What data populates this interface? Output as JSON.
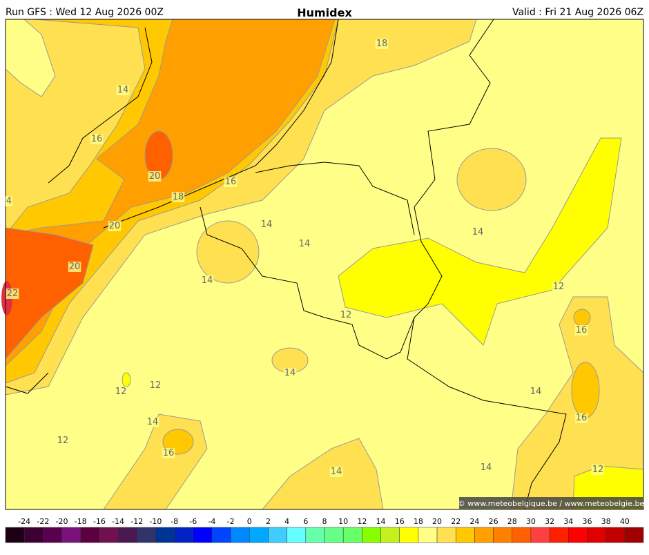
{
  "header": {
    "run": "Run GFS : Wed 12 Aug 2026 00Z",
    "title": "Humidex",
    "valid": "Valid : Fri 21 Aug 2026 06Z"
  },
  "map": {
    "contour_labels": [
      "18",
      "14",
      "16",
      "20",
      "16",
      "18",
      "4",
      "14",
      "20",
      "14",
      "14",
      "20",
      "14",
      "12",
      "22",
      "12",
      "16",
      "14",
      "12",
      "12",
      "14",
      "14",
      "16",
      "12",
      "16",
      "14",
      "14",
      "12"
    ],
    "copyright": "© www.meteobelgique.be / www.meteobelgie.be"
  },
  "colorbar": {
    "labels": [
      -24,
      -22,
      -20,
      -18,
      -16,
      -14,
      -12,
      -10,
      -8,
      -6,
      -4,
      -2,
      0,
      2,
      4,
      6,
      8,
      10,
      12,
      14,
      16,
      18,
      20,
      22,
      24,
      26,
      28,
      30,
      32,
      34,
      36,
      38,
      40
    ],
    "colors": [
      "#1e0014",
      "#3c0032",
      "#5a0050",
      "#7a107a",
      "#5c0040",
      "#701050",
      "#4a1850",
      "#303468",
      "#003494",
      "#0022c4",
      "#0000ff",
      "#0044ff",
      "#0088ff",
      "#00a8ff",
      "#40ccff",
      "#66ffff",
      "#66ffaa",
      "#66ff88",
      "#66ff66",
      "#88ff00",
      "#c4f020",
      "#ffff00",
      "#ffff88",
      "#ffe050",
      "#ffc800",
      "#ffa000",
      "#ff8000",
      "#ff6000",
      "#ff4040",
      "#ff2000",
      "#ff0000",
      "#e00000",
      "#c00000",
      "#a00000",
      "#700000",
      "#800040",
      "#a00080",
      "#d000d0"
    ]
  }
}
